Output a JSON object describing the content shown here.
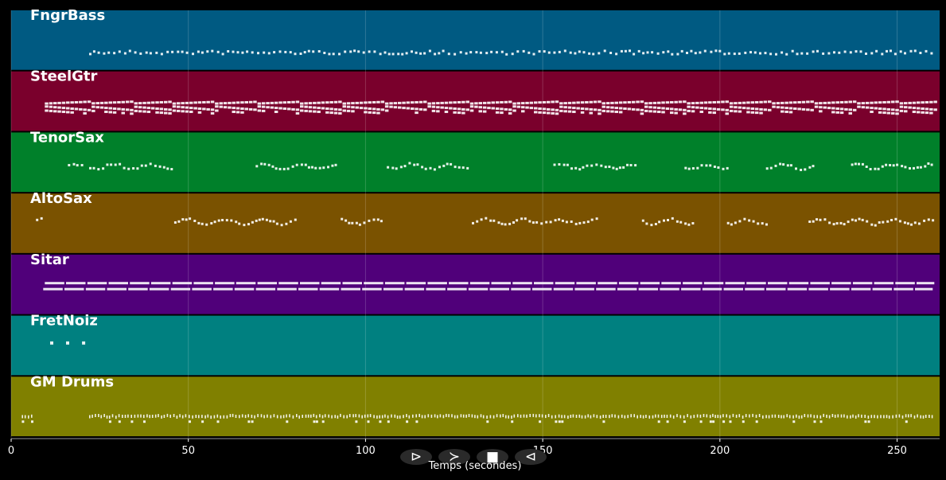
{
  "chart_data": {
    "type": "piano-roll",
    "xlabel": "Temps (secondes)",
    "xlim": [
      0,
      262
    ],
    "xticks": [
      0,
      50,
      100,
      150,
      200,
      250
    ],
    "grid": true,
    "tracks": [
      {
        "name": "FngrBass",
        "color": "#005a82",
        "pattern": "dense-dots",
        "segments": [
          [
            22,
            260.5
          ]
        ],
        "pitch": [
          0.7,
          0.72
        ],
        "spread": 0.06
      },
      {
        "name": "SteelGtr",
        "color": "#7a002c",
        "pattern": "stacked-bars",
        "segments": [
          [
            9.5,
            260.5
          ]
        ],
        "pitch": [
          0.5,
          0.62
        ],
        "spread": 0.08
      },
      {
        "name": "TenorSax",
        "color": "#00802a",
        "pattern": "phrases",
        "segments": [
          [
            16,
            20
          ],
          [
            22,
            45
          ],
          [
            69,
            92
          ],
          [
            106,
            129
          ],
          [
            153,
            177
          ],
          [
            190,
            202
          ],
          [
            213,
            226
          ],
          [
            237,
            260
          ]
        ],
        "pitch": [
          0.55,
          0.6
        ],
        "spread": 0.1
      },
      {
        "name": "AltoSax",
        "color": "#7a5200",
        "pattern": "phrases",
        "segments": [
          [
            7,
            9.5
          ],
          [
            46,
            80
          ],
          [
            93,
            105
          ],
          [
            130,
            165
          ],
          [
            178,
            193
          ],
          [
            202,
            213
          ],
          [
            225,
            260
          ]
        ],
        "pitch": [
          0.45,
          0.5
        ],
        "spread": 0.1
      },
      {
        "name": "Sitar",
        "color": "#50007a",
        "pattern": "bars",
        "segments": [
          [
            9.5,
            260.5
          ]
        ],
        "pitch": [
          0.48,
          0.58
        ],
        "spread": 0.1
      },
      {
        "name": "FretNoiz",
        "color": "#008080",
        "pattern": "sparse",
        "events": [
          11,
          15.5,
          20
        ],
        "pitch": [
          0.46,
          0.46
        ],
        "spread": 0.0
      },
      {
        "name": "GM Drums",
        "color": "#808000",
        "pattern": "drums",
        "segments": [
          [
            3,
            6
          ],
          [
            22,
            260.5
          ]
        ],
        "pitch": [
          0.65,
          0.68
        ],
        "spread": 0.12
      }
    ]
  },
  "controls": [
    {
      "name": "play-icon",
      "glyph": "⊳"
    },
    {
      "name": "forward-icon",
      "glyph": "≻"
    },
    {
      "name": "stop-icon",
      "glyph": "■"
    },
    {
      "name": "back-icon",
      "glyph": "⊲"
    }
  ],
  "colors": {
    "note": "#ffffff",
    "grid": "#ffffff",
    "background": "#000000"
  }
}
